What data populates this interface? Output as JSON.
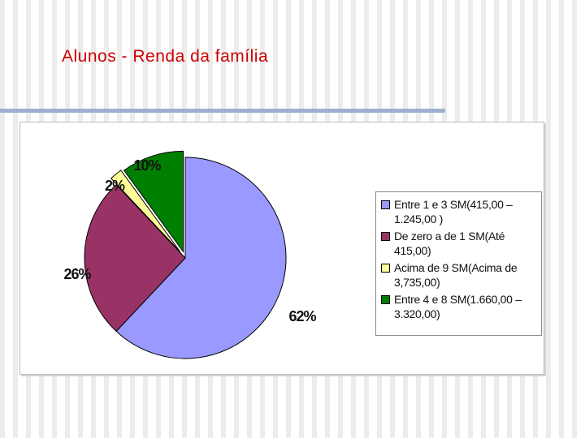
{
  "slide": {
    "title": "Alunos - Renda da família"
  },
  "chart_data": {
    "type": "pie",
    "title": "",
    "slices": [
      {
        "label": "Entre 1 e 3 SM(415,00 – 1.245,00 )",
        "value": 62,
        "pct_label": "62%",
        "color": "#9999ff"
      },
      {
        "label": "De zero a  de 1 SM(Até 415,00)",
        "value": 26,
        "pct_label": "26%",
        "color": "#993366"
      },
      {
        "label": "Acima de 9 SM(Acima de 3,735,00)",
        "value": 2,
        "pct_label": "2%",
        "color": "#ffff99"
      },
      {
        "label": "Entre 4 e 8 SM(1.660,00 – 3.320,00)",
        "value": 10,
        "pct_label": "10%",
        "color": "#008000"
      }
    ],
    "start_angle_deg": 0,
    "exploded": true,
    "legend_position": "right"
  }
}
